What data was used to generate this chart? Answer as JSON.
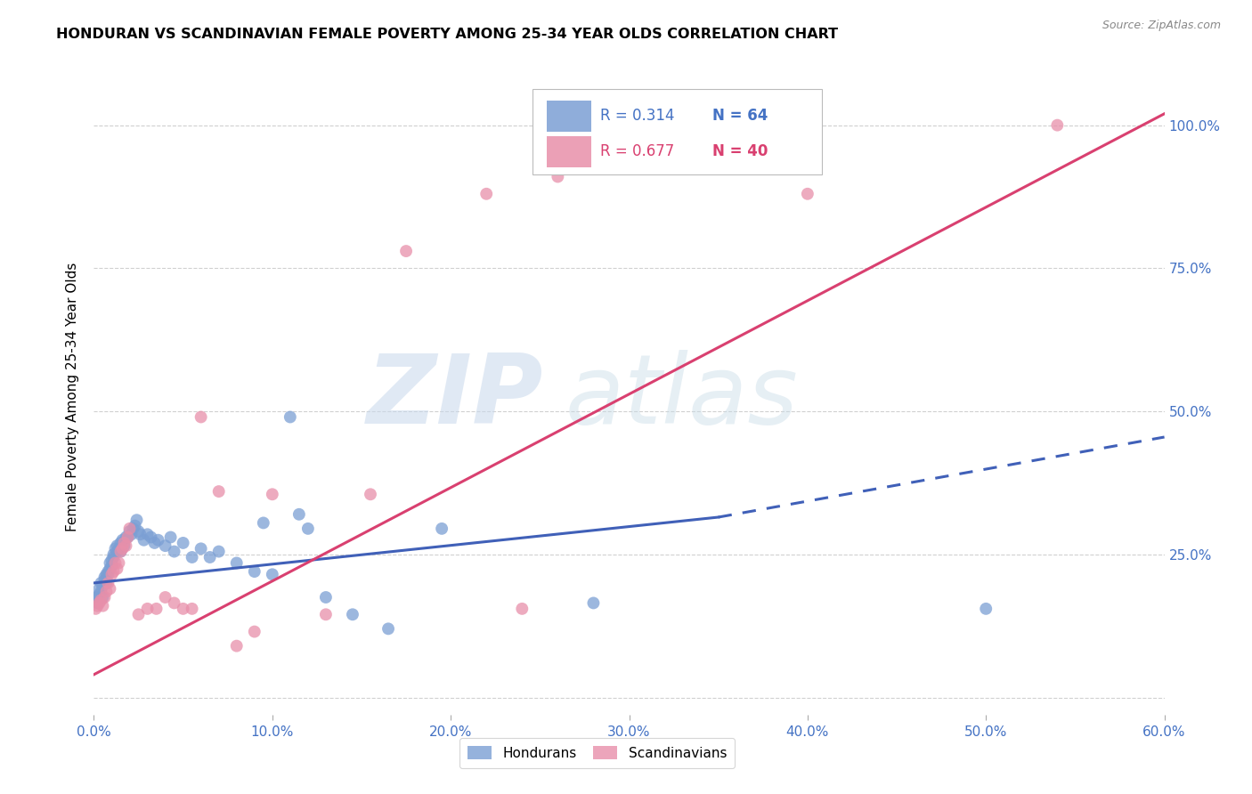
{
  "title": "HONDURAN VS SCANDINAVIAN FEMALE POVERTY AMONG 25-34 YEAR OLDS CORRELATION CHART",
  "source": "Source: ZipAtlas.com",
  "ylabel": "Female Poverty Among 25-34 Year Olds",
  "xmin": 0.0,
  "xmax": 0.6,
  "ymin": -0.03,
  "ymax": 1.08,
  "yticks": [
    0.0,
    0.25,
    0.5,
    0.75,
    1.0
  ],
  "ytick_labels": [
    "",
    "25.0%",
    "50.0%",
    "75.0%",
    "100.0%"
  ],
  "xtick_vals": [
    0.0,
    0.1,
    0.2,
    0.3,
    0.4,
    0.5,
    0.6
  ],
  "honduran_R": 0.314,
  "honduran_N": 64,
  "scandinavian_R": 0.677,
  "scandinavian_N": 40,
  "honduran_color": "#7b9fd4",
  "scandinavian_color": "#e88faa",
  "trendline_honduran_color": "#4060b8",
  "trendline_scandinavian_color": "#d94070",
  "watermark_zip": "ZIP",
  "watermark_atlas": "atlas",
  "honduran_scatter": [
    [
      0.001,
      0.175
    ],
    [
      0.002,
      0.175
    ],
    [
      0.002,
      0.165
    ],
    [
      0.003,
      0.19
    ],
    [
      0.003,
      0.18
    ],
    [
      0.004,
      0.185
    ],
    [
      0.004,
      0.2
    ],
    [
      0.005,
      0.195
    ],
    [
      0.005,
      0.175
    ],
    [
      0.006,
      0.21
    ],
    [
      0.006,
      0.205
    ],
    [
      0.007,
      0.215
    ],
    [
      0.007,
      0.2
    ],
    [
      0.008,
      0.215
    ],
    [
      0.008,
      0.22
    ],
    [
      0.009,
      0.225
    ],
    [
      0.009,
      0.235
    ],
    [
      0.01,
      0.24
    ],
    [
      0.01,
      0.23
    ],
    [
      0.011,
      0.25
    ],
    [
      0.011,
      0.245
    ],
    [
      0.012,
      0.26
    ],
    [
      0.013,
      0.255
    ],
    [
      0.013,
      0.265
    ],
    [
      0.014,
      0.26
    ],
    [
      0.015,
      0.27
    ],
    [
      0.015,
      0.255
    ],
    [
      0.016,
      0.275
    ],
    [
      0.017,
      0.265
    ],
    [
      0.018,
      0.28
    ],
    [
      0.019,
      0.28
    ],
    [
      0.02,
      0.29
    ],
    [
      0.021,
      0.285
    ],
    [
      0.022,
      0.295
    ],
    [
      0.023,
      0.3
    ],
    [
      0.024,
      0.31
    ],
    [
      0.025,
      0.29
    ],
    [
      0.026,
      0.285
    ],
    [
      0.028,
      0.275
    ],
    [
      0.03,
      0.285
    ],
    [
      0.032,
      0.28
    ],
    [
      0.034,
      0.27
    ],
    [
      0.036,
      0.275
    ],
    [
      0.04,
      0.265
    ],
    [
      0.043,
      0.28
    ],
    [
      0.045,
      0.255
    ],
    [
      0.05,
      0.27
    ],
    [
      0.055,
      0.245
    ],
    [
      0.06,
      0.26
    ],
    [
      0.065,
      0.245
    ],
    [
      0.07,
      0.255
    ],
    [
      0.08,
      0.235
    ],
    [
      0.09,
      0.22
    ],
    [
      0.095,
      0.305
    ],
    [
      0.1,
      0.215
    ],
    [
      0.11,
      0.49
    ],
    [
      0.115,
      0.32
    ],
    [
      0.12,
      0.295
    ],
    [
      0.13,
      0.175
    ],
    [
      0.145,
      0.145
    ],
    [
      0.165,
      0.12
    ],
    [
      0.195,
      0.295
    ],
    [
      0.28,
      0.165
    ],
    [
      0.5,
      0.155
    ]
  ],
  "scandinavian_scatter": [
    [
      0.001,
      0.155
    ],
    [
      0.002,
      0.16
    ],
    [
      0.003,
      0.165
    ],
    [
      0.004,
      0.17
    ],
    [
      0.005,
      0.16
    ],
    [
      0.006,
      0.175
    ],
    [
      0.007,
      0.185
    ],
    [
      0.008,
      0.2
    ],
    [
      0.009,
      0.19
    ],
    [
      0.01,
      0.215
    ],
    [
      0.011,
      0.22
    ],
    [
      0.012,
      0.235
    ],
    [
      0.013,
      0.225
    ],
    [
      0.014,
      0.235
    ],
    [
      0.015,
      0.255
    ],
    [
      0.016,
      0.26
    ],
    [
      0.017,
      0.27
    ],
    [
      0.018,
      0.265
    ],
    [
      0.019,
      0.28
    ],
    [
      0.02,
      0.295
    ],
    [
      0.025,
      0.145
    ],
    [
      0.03,
      0.155
    ],
    [
      0.035,
      0.155
    ],
    [
      0.04,
      0.175
    ],
    [
      0.045,
      0.165
    ],
    [
      0.05,
      0.155
    ],
    [
      0.055,
      0.155
    ],
    [
      0.06,
      0.49
    ],
    [
      0.07,
      0.36
    ],
    [
      0.08,
      0.09
    ],
    [
      0.09,
      0.115
    ],
    [
      0.1,
      0.355
    ],
    [
      0.13,
      0.145
    ],
    [
      0.155,
      0.355
    ],
    [
      0.175,
      0.78
    ],
    [
      0.22,
      0.88
    ],
    [
      0.24,
      0.155
    ],
    [
      0.26,
      0.91
    ],
    [
      0.4,
      0.88
    ],
    [
      0.54,
      1.0
    ]
  ],
  "trendline_h_x0": 0.0,
  "trendline_h_x_solid_end": 0.35,
  "trendline_h_x_dash_end": 0.6,
  "trendline_h_y0": 0.2,
  "trendline_h_y_solid_end": 0.315,
  "trendline_h_y_dash_end": 0.455,
  "trendline_s_x0": 0.0,
  "trendline_s_x1": 0.6,
  "trendline_s_y0": 0.04,
  "trendline_s_y1": 1.02
}
